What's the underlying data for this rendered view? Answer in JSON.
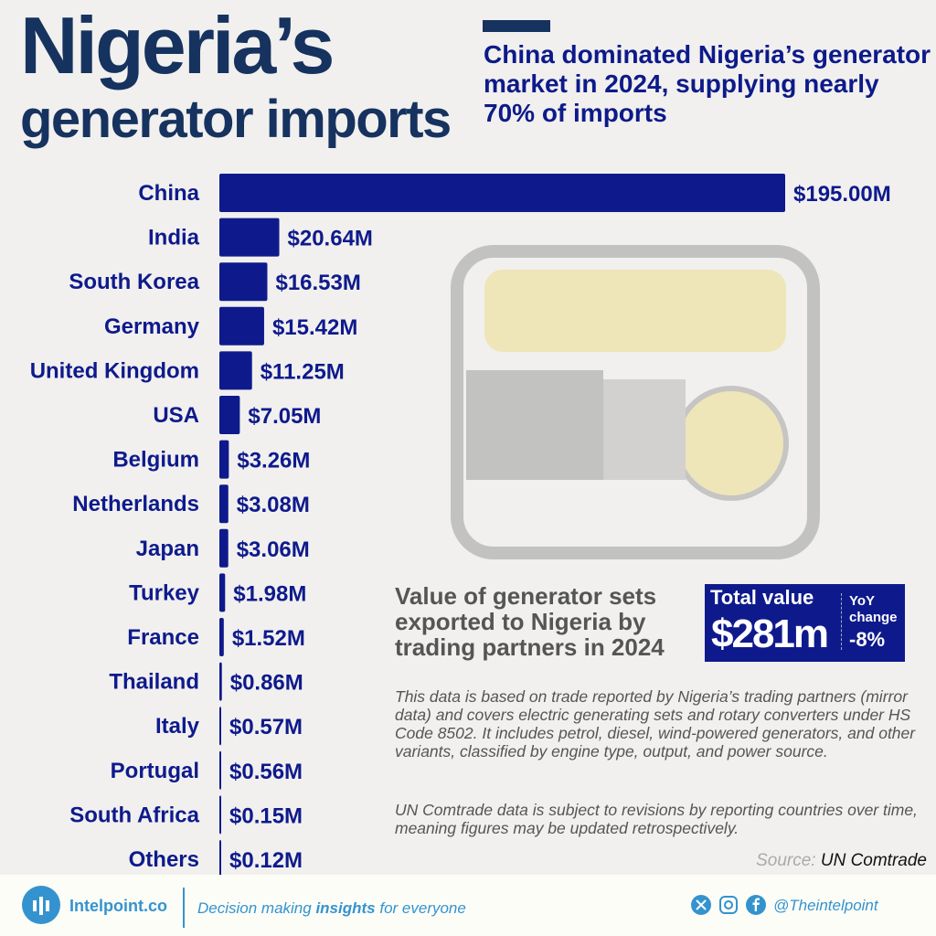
{
  "header": {
    "title_line1": "Nigeria’s",
    "title_line2": "generator imports",
    "subtitle": "China dominated Nigeria’s generator market in 2024, supplying nearly 70% of imports"
  },
  "chart_data": {
    "type": "bar",
    "orientation": "horizontal",
    "categories": [
      "China",
      "India",
      "South Korea",
      "Germany",
      "United Kingdom",
      "USA",
      "Belgium",
      "Netherlands",
      "Japan",
      "Turkey",
      "France",
      "Thailand",
      "Italy",
      "Portugal",
      "South Africa",
      "Others"
    ],
    "values": [
      195.0,
      20.64,
      16.53,
      15.42,
      11.25,
      7.05,
      3.26,
      3.08,
      3.06,
      1.98,
      1.52,
      0.86,
      0.57,
      0.56,
      0.15,
      0.12
    ],
    "labels": [
      "$195.00M",
      "$20.64M",
      "$16.53M",
      "$15.42M",
      "$11.25M",
      "$7.05M",
      "$3.26M",
      "$3.08M",
      "$3.06M",
      "$1.98M",
      "$1.52M",
      "$0.86M",
      "$0.57M",
      "$0.56M",
      "$0.15M",
      "$0.12M"
    ],
    "unit": "USD millions",
    "bar_color": "#0e1a8c",
    "label_color": "#0e1a8c"
  },
  "description": {
    "title": "Value of generator sets exported to Nigeria by trading partners in 2024",
    "note1": "This data is based on trade reported by Nigeria’s trading partners (mirror data) and covers electric generating sets and rotary converters under HS Code 8502. It includes petrol, diesel, wind-powered generators, and other variants, classified by engine type, output, and power source.",
    "note2": "UN Comtrade data is subject to revisions by reporting countries over time, meaning figures may be updated retrospectively.",
    "source_label": "Source:",
    "source": "UN Comtrade"
  },
  "total": {
    "label": "Total value",
    "value": "$281m",
    "yoy_label": "YoY change",
    "yoy_value": "-8%"
  },
  "footer": {
    "brand": "Intelpoint.co",
    "tagline_pre": "Decision making ",
    "tagline_bold": "insights",
    "tagline_post": " for everyone",
    "handle": "@Theintelpoint",
    "icons": [
      "x-icon",
      "instagram-icon",
      "facebook-icon"
    ],
    "accent": "#3493cf"
  }
}
